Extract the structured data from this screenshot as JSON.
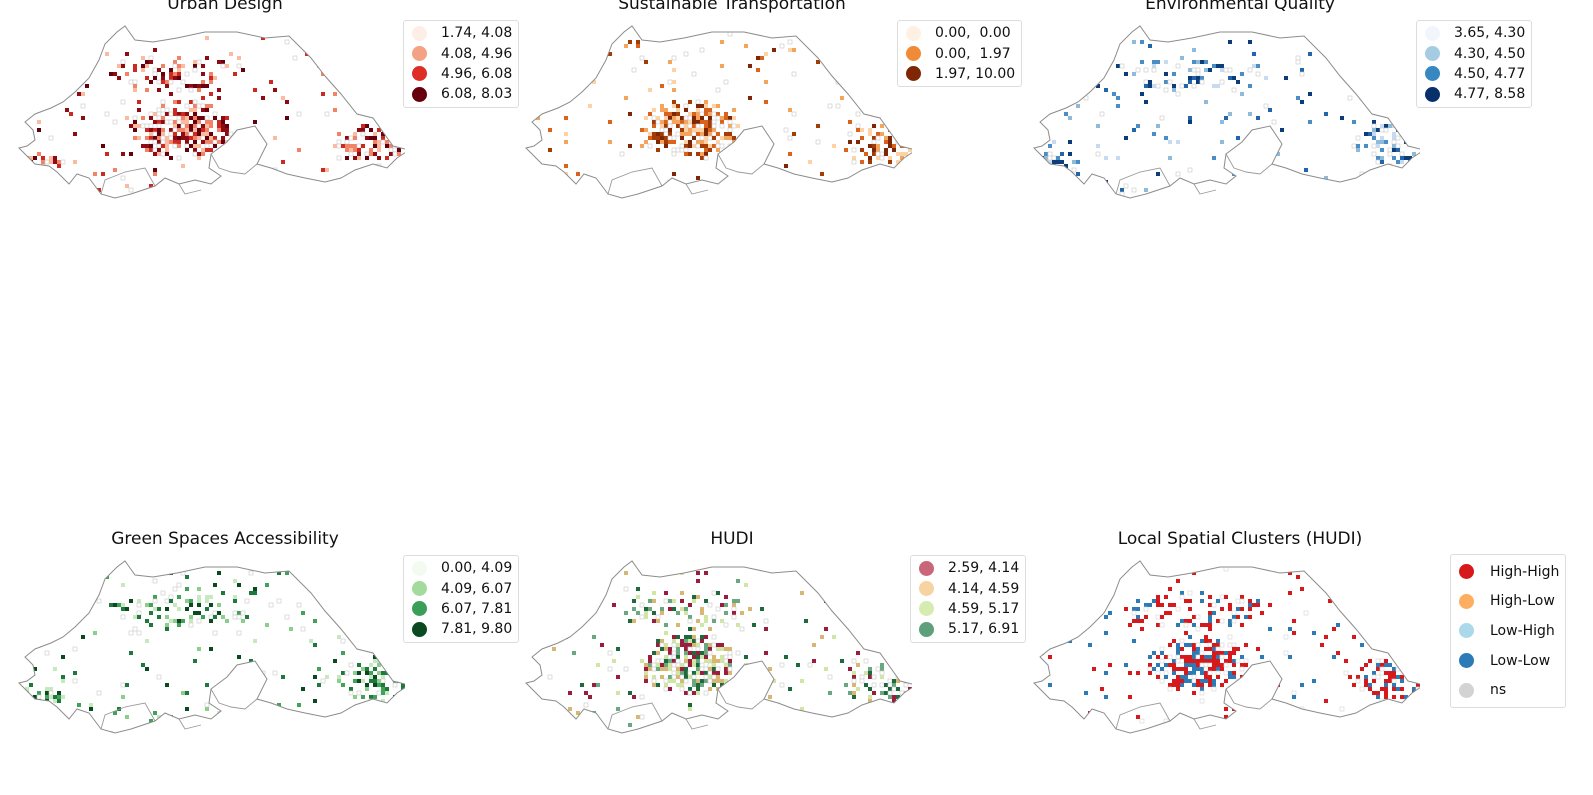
{
  "figure": {
    "panels": [
      {
        "id": "urban-design",
        "title": "Urban Design",
        "legend": [
          {
            "label": "1.74, 4.08",
            "color": "#fdeee6"
          },
          {
            "label": "4.08, 4.96",
            "color": "#f5a183"
          },
          {
            "label": "4.96, 6.08",
            "color": "#de2d26"
          },
          {
            "label": "6.08, 8.03",
            "color": "#67000d"
          }
        ],
        "palette": [
          "#fcbba1",
          "#f08368",
          "#cb2a22",
          "#8e0b14",
          "#67000d"
        ],
        "ns_color": "#c8c8c8",
        "hotspots": [
          "central",
          "north",
          "east",
          "southwest"
        ]
      },
      {
        "id": "sustainable-transportation",
        "title": "Sustainable Transportation",
        "legend": [
          {
            "label": "0.00,  0.00",
            "color": "#fef0e2"
          },
          {
            "label": "0.00,  1.97",
            "color": "#f08a36"
          },
          {
            "label": "1.97, 10.00",
            "color": "#7f2704"
          }
        ],
        "palette": [
          "#fdd2a5",
          "#f3a55e",
          "#d9621d",
          "#a33b07",
          "#7f2704"
        ],
        "ns_color": "#c8c8c8",
        "hotspots": [
          "central",
          "east"
        ]
      },
      {
        "id": "environmental-quality",
        "title": "Environmental Quality",
        "legend": [
          {
            "label": "3.65, 4.30",
            "color": "#f1f6fc"
          },
          {
            "label": "4.30, 4.50",
            "color": "#a5cce3"
          },
          {
            "label": "4.50, 4.77",
            "color": "#3787c0"
          },
          {
            "label": "4.77, 8.58",
            "color": "#08306b"
          }
        ],
        "palette": [
          "#c6dbef",
          "#8fbad9",
          "#4a8ec5",
          "#2265a8",
          "#0c3d7b"
        ],
        "ns_color": "#c8c8c8",
        "hotspots": [
          "north",
          "east",
          "southwest"
        ]
      },
      {
        "id": "green-spaces-accessibility",
        "title": "Green Spaces Accessibility",
        "legend": [
          {
            "label": "0.00, 4.09",
            "color": "#f3faf0"
          },
          {
            "label": "4.09, 6.07",
            "color": "#a5da9e"
          },
          {
            "label": "6.07, 7.81",
            "color": "#3b9e58"
          },
          {
            "label": "7.81, 9.80",
            "color": "#0a4a20"
          }
        ],
        "palette": [
          "#c7e9c0",
          "#8ccf8a",
          "#41a35a",
          "#1e7a3c",
          "#0a4a20"
        ],
        "ns_color": "#c8c8c8",
        "hotspots": [
          "north",
          "east",
          "southwest"
        ]
      },
      {
        "id": "hudi",
        "title": "HUDI",
        "legend": [
          {
            "label": "2.59, 4.14",
            "color": "#c96679"
          },
          {
            "label": "4.14, 4.59",
            "color": "#f6d3a0"
          },
          {
            "label": "4.59, 5.17",
            "color": "#d5ebb0"
          },
          {
            "label": "5.17, 6.91",
            "color": "#5e9f7c"
          }
        ],
        "palette": [
          "#9c1c3e",
          "#d8b673",
          "#cfe6a5",
          "#6aa97f",
          "#1d6a3c"
        ],
        "ns_color": "#c8c8c8",
        "hotspots": [
          "central",
          "north",
          "east"
        ]
      },
      {
        "id": "local-spatial-clusters-hudi",
        "title": "Local Spatial Clusters (HUDI)",
        "legend": [
          {
            "label": "High-High",
            "color": "#d7191c"
          },
          {
            "label": "High-Low",
            "color": "#fdae61"
          },
          {
            "label": "Low-High",
            "color": "#abd9e9"
          },
          {
            "label": "Low-Low",
            "color": "#2c7bb6"
          },
          {
            "label": "ns",
            "color": "#d3d3d3"
          }
        ],
        "palette": [
          "#d7191c",
          "#d7191c",
          "#2c7bb6",
          "#2c7bb6",
          "#d7191c"
        ],
        "ns_color": "#d3d3d3",
        "hotspots": [
          "central",
          "north",
          "east"
        ]
      }
    ]
  }
}
